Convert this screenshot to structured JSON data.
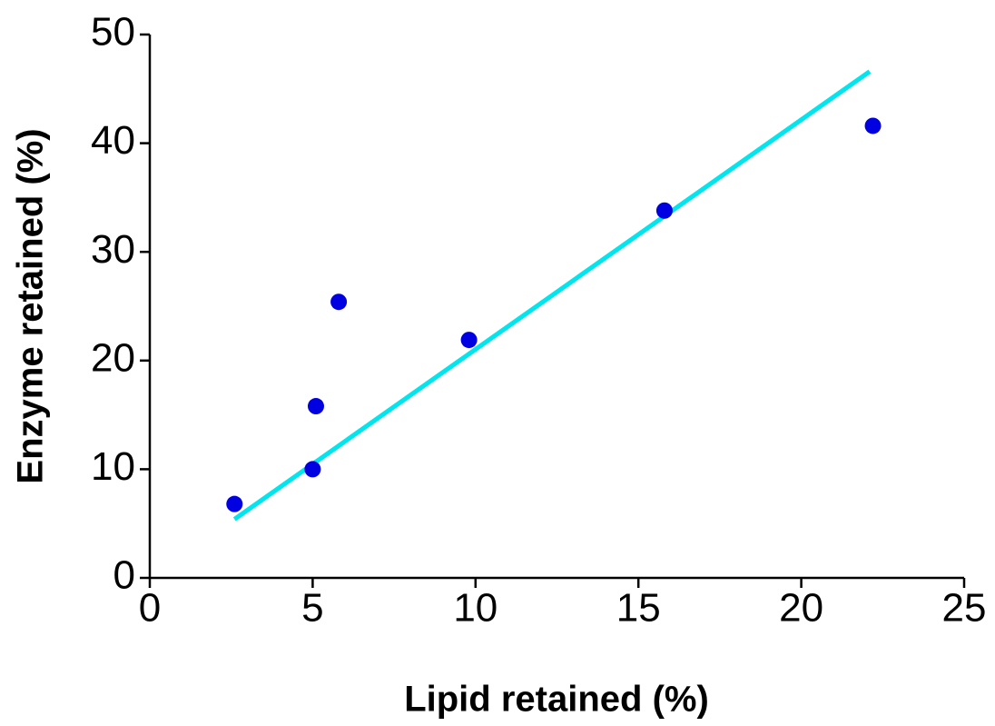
{
  "chart_data": {
    "type": "scatter",
    "x_label": "Lipid retained (%)",
    "y_label": "Enzyme retained (%)",
    "x": [
      2.6,
      5.0,
      5.1,
      5.8,
      9.8,
      15.8,
      22.2
    ],
    "values": [
      6.8,
      10.0,
      15.8,
      25.4,
      21.9,
      33.8,
      41.6
    ],
    "color": "#0000e0",
    "fit_line": {
      "x": [
        2.6,
        22.1
      ],
      "y": [
        5.4,
        46.6
      ],
      "color": "#00e5ee"
    },
    "xlim": [
      0,
      25
    ],
    "xticks": [
      0,
      5,
      10,
      15,
      20,
      25
    ],
    "ylim": [
      0,
      50
    ],
    "yticks": [
      0,
      10,
      20,
      30,
      40,
      50
    ],
    "grid": false
  }
}
